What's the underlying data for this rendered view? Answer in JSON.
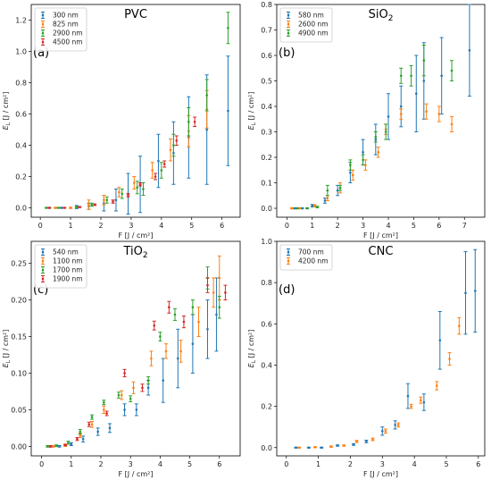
{
  "chart_data": [
    {
      "type": "scatter",
      "title": "PVC",
      "title_sub": "",
      "panel_label": "(a)",
      "xlabel": "F [J / cm²]",
      "ylabel_main": "E",
      "ylabel_sub": "L",
      "ylabel_rest": " [J / cm²]",
      "xlim": [
        -0.3,
        6.6
      ],
      "ylim": [
        -0.06,
        1.3
      ],
      "xticks": [
        0,
        1,
        2,
        3,
        4,
        5,
        6
      ],
      "yticks": [
        0.0,
        0.2,
        0.4,
        0.6,
        0.8,
        1.0,
        1.2
      ],
      "ytick_labels": [
        "0.0",
        "0.2",
        "0.4",
        "0.6",
        "0.8",
        "1.0",
        "1.2"
      ],
      "legend_position": "top-left",
      "series": [
        {
          "name": "300 nm",
          "color": "#1f77b4",
          "points": [
            [
              0.3,
              0,
              0.003
            ],
            [
              0.7,
              0,
              0.003
            ],
            [
              1.2,
              0.005,
              0.01
            ],
            [
              1.6,
              0.01,
              0.02
            ],
            [
              2.1,
              0.03,
              0.05
            ],
            [
              2.5,
              0.05,
              0.07
            ],
            [
              2.9,
              0.09,
              0.13
            ],
            [
              3.3,
              0.15,
              0.18
            ],
            [
              3.9,
              0.3,
              0.17
            ],
            [
              4.4,
              0.35,
              0.2
            ],
            [
              4.9,
              0.45,
              0.26
            ],
            [
              5.5,
              0.5,
              0.35
            ],
            [
              6.2,
              0.62,
              0.35
            ]
          ]
        },
        {
          "name": "825 nm",
          "color": "#ff7f0e",
          "points": [
            [
              0.5,
              0,
              0.003
            ],
            [
              1.0,
              0,
              0.004
            ],
            [
              1.6,
              0.02,
              0.03
            ],
            [
              2.1,
              0.05,
              0.03
            ],
            [
              2.6,
              0.1,
              0.03
            ],
            [
              3.1,
              0.16,
              0.04
            ],
            [
              3.7,
              0.24,
              0.05
            ],
            [
              4.3,
              0.37,
              0.07
            ],
            [
              4.9,
              0.49,
              0.1
            ],
            [
              5.5,
              0.63,
              0.12
            ]
          ]
        },
        {
          "name": "2900 nm",
          "color": "#2ca02c",
          "points": [
            [
              0.2,
              0,
              0.002
            ],
            [
              0.6,
              0,
              0.002
            ],
            [
              1.2,
              0.005,
              0.004
            ],
            [
              1.7,
              0.02,
              0.01
            ],
            [
              2.2,
              0.05,
              0.02
            ],
            [
              2.7,
              0.09,
              0.03
            ],
            [
              3.2,
              0.13,
              0.04
            ],
            [
              3.4,
              0.12,
              0.04
            ],
            [
              4.0,
              0.24,
              0.05
            ],
            [
              4.4,
              0.4,
              0.07
            ],
            [
              4.9,
              0.55,
              0.09
            ],
            [
              5.5,
              0.72,
              0.1
            ],
            [
              6.2,
              1.15,
              0.1
            ]
          ]
        },
        {
          "name": "4500 nm",
          "color": "#d62728",
          "points": [
            [
              0.3,
              0,
              0.002
            ],
            [
              0.8,
              0,
              0.002
            ],
            [
              1.3,
              0.005,
              0.003
            ],
            [
              1.8,
              0.02,
              0.005
            ],
            [
              2.4,
              0.04,
              0.01
            ],
            [
              2.9,
              0.08,
              0.01
            ],
            [
              3.3,
              0.15,
              0.01
            ],
            [
              3.8,
              0.2,
              0.02
            ],
            [
              4.1,
              0.28,
              0.02
            ],
            [
              4.5,
              0.43,
              0.03
            ],
            [
              5.1,
              0.55,
              0.03
            ]
          ]
        }
      ]
    },
    {
      "type": "scatter",
      "title": "SiO",
      "title_sub": "2",
      "panel_label": "(b)",
      "xlabel": "F [J / cm²]",
      "ylabel_main": "E",
      "ylabel_sub": "L",
      "ylabel_rest": " [J / cm²]",
      "xlim": [
        -0.4,
        7.8
      ],
      "ylim": [
        -0.035,
        0.8
      ],
      "xticks": [
        0,
        1,
        2,
        3,
        4,
        5,
        6,
        7
      ],
      "yticks": [
        0.0,
        0.1,
        0.2,
        0.3,
        0.4,
        0.5,
        0.6,
        0.7,
        0.8
      ],
      "ytick_labels": [
        "0.0",
        "0.1",
        "0.2",
        "0.3",
        "0.4",
        "0.5",
        "0.6",
        "0.7",
        "0.8"
      ],
      "legend_position": "top-left",
      "series": [
        {
          "name": "580 nm",
          "color": "#1f77b4",
          "points": [
            [
              0.3,
              0,
              0.002
            ],
            [
              0.6,
              0,
              0.002
            ],
            [
              1.0,
              0.01,
              0.005
            ],
            [
              1.5,
              0.03,
              0.01
            ],
            [
              2.0,
              0.07,
              0.02
            ],
            [
              2.5,
              0.14,
              0.04
            ],
            [
              3.0,
              0.22,
              0.05
            ],
            [
              3.5,
              0.27,
              0.06
            ],
            [
              4.0,
              0.36,
              0.09
            ],
            [
              4.5,
              0.4,
              0.08
            ],
            [
              5.1,
              0.45,
              0.15
            ],
            [
              5.4,
              0.5,
              0.15
            ],
            [
              6.1,
              0.52,
              0.15
            ],
            [
              7.2,
              0.62,
              0.18
            ]
          ]
        },
        {
          "name": "2600 nm",
          "color": "#ff7f0e",
          "points": [
            [
              0.2,
              0,
              0.002
            ],
            [
              0.5,
              0,
              0.002
            ],
            [
              1.1,
              0.01,
              0.004
            ],
            [
              1.6,
              0.04,
              0.01
            ],
            [
              2.1,
              0.08,
              0.02
            ],
            [
              2.6,
              0.13,
              0.02
            ],
            [
              3.1,
              0.17,
              0.02
            ],
            [
              3.6,
              0.22,
              0.02
            ],
            [
              3.9,
              0.31,
              0.02
            ],
            [
              4.5,
              0.37,
              0.02
            ],
            [
              5.5,
              0.38,
              0.03
            ],
            [
              6.0,
              0.37,
              0.03
            ],
            [
              6.5,
              0.33,
              0.03
            ]
          ]
        },
        {
          "name": "4900 nm",
          "color": "#2ca02c",
          "points": [
            [
              0.4,
              0,
              0.002
            ],
            [
              0.8,
              0,
              0.002
            ],
            [
              1.2,
              0.005,
              0.003
            ],
            [
              1.6,
              0.07,
              0.02
            ],
            [
              2.1,
              0.08,
              0.01
            ],
            [
              2.5,
              0.17,
              0.02
            ],
            [
              3.0,
              0.19,
              0.02
            ],
            [
              3.5,
              0.28,
              0.02
            ],
            [
              3.9,
              0.3,
              0.03
            ],
            [
              4.5,
              0.52,
              0.03
            ],
            [
              4.9,
              0.52,
              0.04
            ],
            [
              5.4,
              0.58,
              0.06
            ],
            [
              6.5,
              0.54,
              0.04
            ]
          ]
        }
      ]
    },
    {
      "type": "scatter",
      "title": "TiO",
      "title_sub": "2",
      "panel_label": "(c)",
      "xlabel": "F [J / cm²]",
      "ylabel_main": "E",
      "ylabel_sub": "L",
      "ylabel_rest": " [J / cm²]",
      "xlim": [
        -0.35,
        6.7
      ],
      "ylim": [
        -0.013,
        0.28
      ],
      "xticks": [
        0,
        1,
        2,
        3,
        4,
        5,
        6
      ],
      "yticks": [
        0.0,
        0.05,
        0.1,
        0.15,
        0.2,
        0.25
      ],
      "ytick_labels": [
        "0.00",
        "0.05",
        "0.10",
        "0.15",
        "0.20",
        "0.25"
      ],
      "legend_position": "top-left",
      "series": [
        {
          "name": "540 nm",
          "color": "#1f77b4",
          "points": [
            [
              0.3,
              0,
              0.001
            ],
            [
              0.6,
              0,
              0.001
            ],
            [
              1.0,
              0.003,
              0.002
            ],
            [
              1.4,
              0.01,
              0.004
            ],
            [
              1.9,
              0.02,
              0.005
            ],
            [
              2.3,
              0.025,
              0.006
            ],
            [
              2.8,
              0.05,
              0.008
            ],
            [
              3.2,
              0.05,
              0.008
            ],
            [
              3.6,
              0.08,
              0.01
            ],
            [
              4.1,
              0.09,
              0.03
            ],
            [
              4.6,
              0.12,
              0.04
            ],
            [
              5.1,
              0.14,
              0.04
            ],
            [
              5.6,
              0.16,
              0.04
            ],
            [
              5.9,
              0.18,
              0.05
            ]
          ]
        },
        {
          "name": "1100 nm",
          "color": "#ff7f0e",
          "points": [
            [
              0.4,
              0,
              0.001
            ],
            [
              0.8,
              0.001,
              0.001
            ],
            [
              1.3,
              0.015,
              0.003
            ],
            [
              1.7,
              0.03,
              0.004
            ],
            [
              2.1,
              0.05,
              0.005
            ],
            [
              2.7,
              0.07,
              0.006
            ],
            [
              3.1,
              0.08,
              0.008
            ],
            [
              3.7,
              0.12,
              0.01
            ],
            [
              4.2,
              0.13,
              0.01
            ],
            [
              4.7,
              0.13,
              0.015
            ],
            [
              5.3,
              0.17,
              0.02
            ],
            [
              5.8,
              0.21,
              0.02
            ],
            [
              6.0,
              0.23,
              0.03
            ]
          ]
        },
        {
          "name": "1700 nm",
          "color": "#2ca02c",
          "points": [
            [
              0.2,
              0,
              0.001
            ],
            [
              0.5,
              0.001,
              0.001
            ],
            [
              0.9,
              0.005,
              0.002
            ],
            [
              1.3,
              0.02,
              0.003
            ],
            [
              1.7,
              0.04,
              0.003
            ],
            [
              2.1,
              0.06,
              0.003
            ],
            [
              2.6,
              0.07,
              0.004
            ],
            [
              3.0,
              0.065,
              0.004
            ],
            [
              3.6,
              0.09,
              0.005
            ],
            [
              4.0,
              0.15,
              0.006
            ],
            [
              4.5,
              0.18,
              0.008
            ],
            [
              5.1,
              0.19,
              0.01
            ],
            [
              5.6,
              0.23,
              0.015
            ],
            [
              6.0,
              0.19,
              0.015
            ]
          ]
        },
        {
          "name": "1900 nm",
          "color": "#d62728",
          "points": [
            [
              0.3,
              0,
              0.001
            ],
            [
              0.8,
              0.002,
              0.001
            ],
            [
              1.2,
              0.01,
              0.002
            ],
            [
              1.6,
              0.03,
              0.003
            ],
            [
              2.2,
              0.045,
              0.003
            ],
            [
              2.8,
              0.1,
              0.005
            ],
            [
              3.4,
              0.08,
              0.005
            ],
            [
              3.8,
              0.165,
              0.006
            ],
            [
              4.3,
              0.19,
              0.008
            ],
            [
              4.8,
              0.17,
              0.008
            ],
            [
              5.6,
              0.22,
              0.01
            ],
            [
              6.2,
              0.21,
              0.01
            ]
          ]
        }
      ]
    },
    {
      "type": "scatter",
      "title": "CNC",
      "title_sub": "",
      "panel_label": "(d)",
      "xlabel": "F [J / cm²]",
      "ylabel_main": "E",
      "ylabel_sub": "L",
      "ylabel_rest": " [J / cm²]",
      "xlim": [
        -0.3,
        6.2
      ],
      "ylim": [
        -0.04,
        1.0
      ],
      "xticks": [
        0,
        1,
        2,
        3,
        4,
        5,
        6
      ],
      "yticks": [
        0.0,
        0.2,
        0.4,
        0.6,
        0.8,
        1.0
      ],
      "ytick_labels": [
        "0.0",
        "0.2",
        "0.4",
        "0.6",
        "0.8",
        "1.0"
      ],
      "legend_position": "top-left",
      "series": [
        {
          "name": "700 nm",
          "color": "#1f77b4",
          "points": [
            [
              0.3,
              0,
              0.002
            ],
            [
              0.7,
              0,
              0.002
            ],
            [
              1.1,
              0,
              0.002
            ],
            [
              1.6,
              0.01,
              0.003
            ],
            [
              2.1,
              0.015,
              0.004
            ],
            [
              2.5,
              0.03,
              0.006
            ],
            [
              3.0,
              0.08,
              0.02
            ],
            [
              3.4,
              0.11,
              0.02
            ],
            [
              3.8,
              0.25,
              0.06
            ],
            [
              4.3,
              0.22,
              0.04
            ],
            [
              4.8,
              0.52,
              0.14
            ],
            [
              5.6,
              0.75,
              0.2
            ],
            [
              5.9,
              0.76,
              0.2
            ]
          ]
        },
        {
          "name": "4200 nm",
          "color": "#ff7f0e",
          "points": [
            [
              0.4,
              0,
              0.002
            ],
            [
              0.9,
              0.002,
              0.002
            ],
            [
              1.4,
              0.005,
              0.003
            ],
            [
              1.8,
              0.01,
              0.003
            ],
            [
              2.2,
              0.03,
              0.005
            ],
            [
              2.7,
              0.04,
              0.006
            ],
            [
              3.1,
              0.08,
              0.01
            ],
            [
              3.5,
              0.11,
              0.01
            ],
            [
              3.9,
              0.2,
              0.01
            ],
            [
              4.2,
              0.23,
              0.015
            ],
            [
              4.7,
              0.3,
              0.02
            ],
            [
              5.1,
              0.43,
              0.03
            ],
            [
              5.4,
              0.59,
              0.04
            ]
          ]
        }
      ]
    }
  ]
}
